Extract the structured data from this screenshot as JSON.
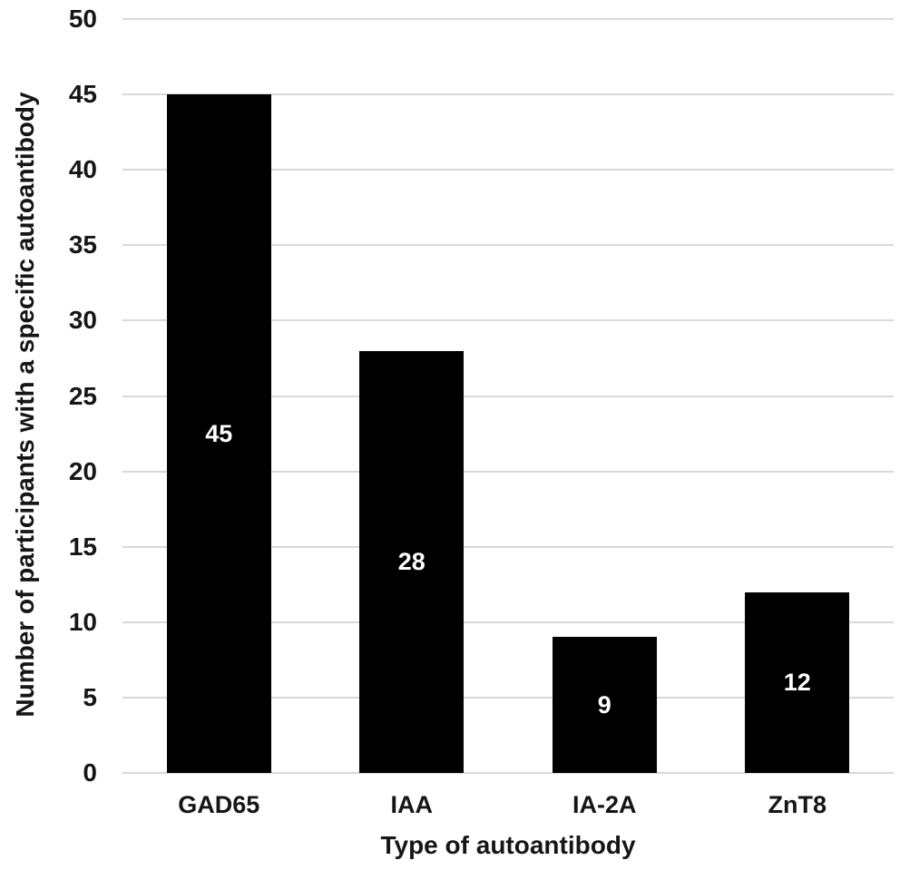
{
  "chart_data": {
    "type": "bar",
    "categories": [
      "GAD65",
      "IAA",
      "IA-2A",
      "ZnT8"
    ],
    "values": [
      45,
      28,
      9,
      12
    ],
    "bar_value_labels": [
      "45",
      "28",
      "9",
      "12"
    ],
    "title": "",
    "xlabel": "Type of autoantibody",
    "ylabel": "Number of participants with a specific autoantibody",
    "ylim": [
      0,
      50
    ],
    "yticks": [
      0,
      5,
      10,
      15,
      20,
      25,
      30,
      35,
      40,
      45,
      50
    ],
    "grid": "horizontal",
    "legend": "none",
    "colors": {
      "bar": "#000000",
      "bar_value_label": "#ffffff",
      "gridline": "#d8d8d8",
      "text": "#161616",
      "background": "#ffffff"
    }
  }
}
